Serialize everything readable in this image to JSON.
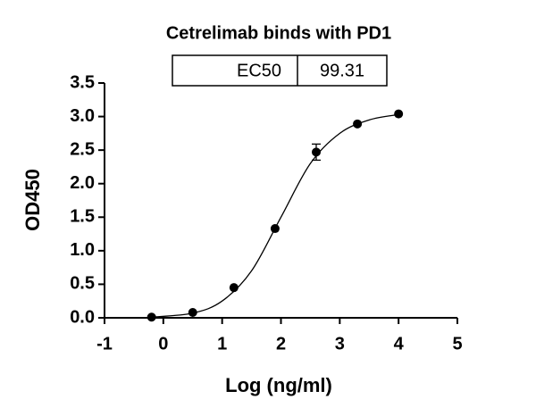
{
  "chart_data": {
    "type": "scatter",
    "title": "Cetrelimab binds with PD1",
    "xlabel": "Log (ng/ml)",
    "ylabel": "OD450",
    "x": [
      -0.2,
      0.5,
      1.2,
      1.9,
      2.6,
      3.3,
      4.0
    ],
    "values": [
      0.01,
      0.08,
      0.45,
      1.33,
      2.47,
      2.89,
      3.04
    ],
    "errors": [
      null,
      null,
      null,
      null,
      0.12,
      null,
      null
    ],
    "color": "#000000",
    "fit": {
      "x": [
        -0.2,
        0.5,
        1.0,
        1.5,
        2.0,
        2.5,
        3.0,
        3.5,
        4.0
      ],
      "values": [
        0.01,
        0.07,
        0.25,
        0.7,
        1.5,
        2.3,
        2.75,
        2.95,
        3.03
      ]
    },
    "annotation": {
      "label": "EC50",
      "value": 99.31
    },
    "xlim": [
      -1,
      5
    ],
    "xticks": [
      -1,
      0,
      1,
      2,
      3,
      4,
      5
    ],
    "ylim": [
      0,
      3.5
    ],
    "yticks": [
      {
        "value": 0,
        "label": "0.0"
      },
      0.5,
      {
        "value": 1,
        "label": "1.0"
      },
      1.5,
      {
        "value": 2,
        "label": "2.0"
      },
      2.5,
      {
        "value": 3,
        "label": "3.0"
      },
      3.5
    ],
    "grid": false
  }
}
